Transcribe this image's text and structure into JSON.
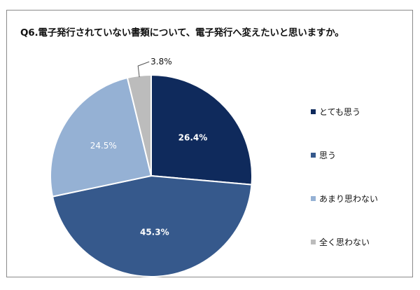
{
  "chart_data": {
    "type": "pie",
    "title": "Q6.電子発行されていない書類について、電子発行へ変えたいと思いますか。",
    "slices": [
      {
        "label": "とても思う",
        "value": 26.4,
        "value_label": "26.4%",
        "color": "#0f2a5c",
        "label_color": "#ffffff",
        "label_bold": true
      },
      {
        "label": "思う",
        "value": 45.3,
        "value_label": "45.3%",
        "color": "#36598c",
        "label_color": "#ffffff",
        "label_bold": true
      },
      {
        "label": "あまり思わない",
        "value": 24.5,
        "value_label": "24.5%",
        "color": "#95b1d4",
        "label_color": "#ffffff",
        "label_bold": false
      },
      {
        "label": "全く思わない",
        "value": 3.8,
        "value_label": "3.8%",
        "color": "#bcbcbc",
        "label_color": "#111111",
        "label_bold": false
      }
    ],
    "start": "12 o'clock",
    "direction": "clockwise",
    "legend_position": "right"
  }
}
